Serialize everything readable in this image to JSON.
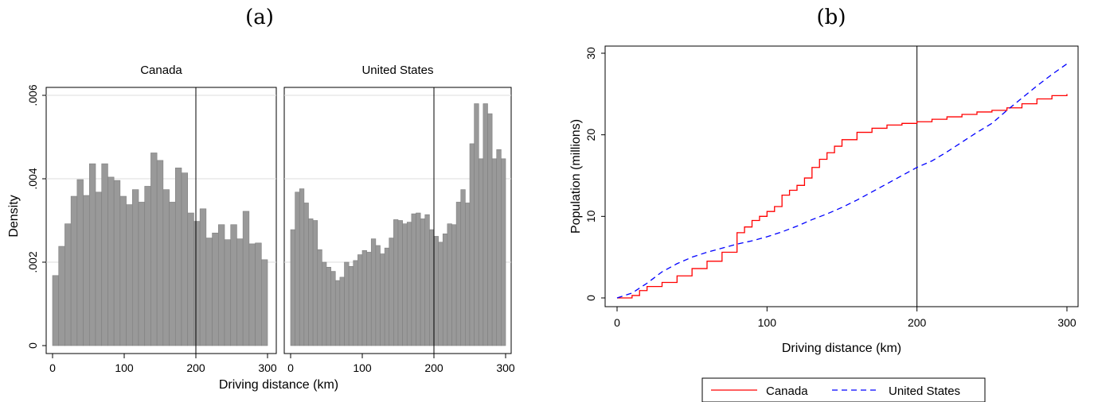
{
  "panel_letters": {
    "a": "(a)",
    "b": "(b)"
  },
  "chart_data": [
    {
      "type": "bar",
      "panel": "(a)",
      "xlabel": "Driving distance (km)",
      "ylabel": "Density",
      "xlim": [
        0,
        300
      ],
      "ylim": [
        0,
        0.006
      ],
      "xticks": [
        0,
        100,
        200,
        300
      ],
      "yticks": [
        0,
        0.002,
        0.004,
        0.006
      ],
      "ytick_labels": [
        "0",
        ".002",
        ".004",
        ".006"
      ],
      "bin_width": 7.5,
      "bar_color": "#999999",
      "grid": "horizontal",
      "reference_line_x": 200,
      "facets": [
        {
          "name": "Canada",
          "values": [
            0.00168,
            0.00238,
            0.00292,
            0.00358,
            0.00398,
            0.0036,
            0.00436,
            0.00368,
            0.00436,
            0.00404,
            0.00396,
            0.00358,
            0.00338,
            0.00374,
            0.00344,
            0.00382,
            0.00462,
            0.00444,
            0.00374,
            0.00344,
            0.00426,
            0.00414,
            0.00318,
            0.00298,
            0.00328,
            0.00258,
            0.0027,
            0.0029,
            0.00254,
            0.0029,
            0.00256,
            0.00322,
            0.00244,
            0.00246,
            0.00206
          ]
        },
        {
          "name": "United States",
          "values": [
            0.00278,
            0.00368,
            0.00376,
            0.00342,
            0.00304,
            0.003,
            0.0023,
            0.002,
            0.00188,
            0.00178,
            0.00156,
            0.00164,
            0.002,
            0.0019,
            0.00204,
            0.00218,
            0.00228,
            0.00224,
            0.00256,
            0.0024,
            0.0022,
            0.00234,
            0.00258,
            0.00302,
            0.003,
            0.00292,
            0.00296,
            0.00316,
            0.00318,
            0.00304,
            0.00314,
            0.00278,
            0.00262,
            0.00248,
            0.00268,
            0.00292,
            0.0029,
            0.00344,
            0.00374,
            0.00342,
            0.00484,
            0.0058,
            0.00448,
            0.0058,
            0.00556,
            0.00448,
            0.0047,
            0.00448
          ]
        }
      ]
    },
    {
      "type": "line",
      "panel": "(b)",
      "xlabel": "Driving distance (km)",
      "ylabel": "Population (millions)",
      "xlim": [
        0,
        300
      ],
      "ylim": [
        0,
        30
      ],
      "xticks": [
        0,
        100,
        200,
        300
      ],
      "yticks": [
        0,
        10,
        20,
        30
      ],
      "reference_line_x": 200,
      "legend": "bottom",
      "series": [
        {
          "name": "Canada",
          "color": "#ff0000",
          "style": "solid",
          "x": [
            0,
            10,
            15,
            20,
            30,
            40,
            50,
            60,
            70,
            80,
            85,
            90,
            95,
            100,
            105,
            110,
            115,
            120,
            125,
            130,
            135,
            140,
            145,
            150,
            160,
            170,
            180,
            190,
            200,
            210,
            220,
            230,
            240,
            250,
            260,
            270,
            280,
            290,
            300
          ],
          "y": [
            0,
            0.3,
            0.9,
            1.4,
            1.9,
            2.7,
            3.6,
            4.5,
            5.6,
            8.0,
            8.7,
            9.5,
            10.0,
            10.6,
            11.2,
            12.6,
            13.2,
            13.8,
            14.7,
            16.0,
            17.0,
            17.8,
            18.6,
            19.4,
            20.3,
            20.8,
            21.2,
            21.4,
            21.6,
            21.9,
            22.2,
            22.5,
            22.8,
            23.0,
            23.3,
            23.8,
            24.4,
            24.8,
            25.0
          ]
        },
        {
          "name": "United States",
          "color": "#0000ff",
          "style": "dashed",
          "x": [
            0,
            10,
            20,
            30,
            40,
            50,
            60,
            70,
            80,
            90,
            100,
            110,
            120,
            130,
            140,
            150,
            160,
            170,
            180,
            190,
            200,
            210,
            220,
            230,
            240,
            250,
            260,
            270,
            280,
            290,
            300
          ],
          "y": [
            0,
            0.6,
            1.8,
            3.2,
            4.2,
            5.0,
            5.6,
            6.1,
            6.6,
            7.0,
            7.5,
            8.1,
            8.8,
            9.6,
            10.3,
            11.1,
            12.0,
            13.0,
            14.0,
            15.0,
            16.0,
            16.8,
            17.9,
            19.1,
            20.3,
            21.4,
            23.0,
            24.5,
            26.0,
            27.4,
            28.7
          ]
        }
      ]
    }
  ]
}
